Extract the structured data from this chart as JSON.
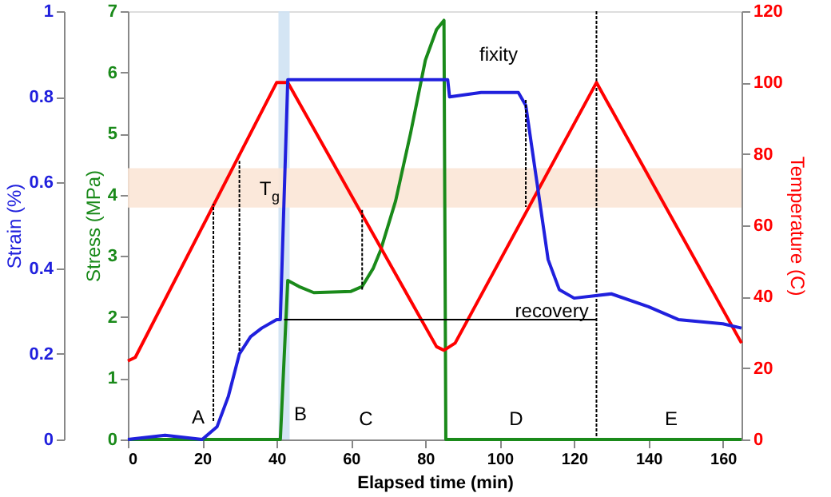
{
  "chart_data": {
    "type": "line",
    "xlabel": "Elapsed time (min)",
    "ylabel": "Stress (MPa)",
    "y2label": "Temperature (C)",
    "y3label": "Strain (%)",
    "xlim": [
      0,
      165
    ],
    "xticks": [
      0,
      20,
      40,
      60,
      80,
      100,
      120,
      140,
      160
    ],
    "ylim": [
      0,
      7
    ],
    "yticks": [
      0,
      1,
      2,
      3,
      4,
      5,
      6,
      7
    ],
    "y2lim": [
      0,
      120
    ],
    "y2ticks": [
      0,
      20,
      40,
      60,
      80,
      100,
      120
    ],
    "y3lim": [
      0,
      1
    ],
    "y3ticks": [
      0,
      0.2,
      0.4,
      0.6,
      0.8,
      1
    ],
    "marker": "none",
    "series": [
      {
        "color": "#1a8a1a",
        "axis": "y",
        "x": [
          0,
          41,
          43,
          46,
          50,
          60,
          63,
          66,
          68,
          72,
          76,
          80,
          83,
          85,
          85.5,
          165
        ],
        "values": [
          0,
          0,
          2.6,
          2.5,
          2.4,
          2.42,
          2.5,
          2.8,
          3.1,
          3.9,
          5.0,
          6.2,
          6.7,
          6.85,
          0,
          0
        ]
      },
      {
        "color": "#ff0000",
        "axis": "y2",
        "x": [
          0,
          2,
          40,
          43,
          83,
          85,
          88,
          126,
          165
        ],
        "values": [
          22,
          23,
          100,
          100,
          26,
          25,
          27,
          100,
          27
        ]
      },
      {
        "color": "#2020dd",
        "axis": "y3",
        "x": [
          0,
          10,
          20,
          24,
          27,
          30,
          33,
          36,
          40,
          41,
          43,
          86,
          86.5,
          95,
          105,
          107,
          110,
          113,
          116,
          120,
          130,
          140,
          148,
          160,
          165
        ],
        "values": [
          0,
          0.01,
          0,
          0.03,
          0.1,
          0.2,
          0.24,
          0.26,
          0.28,
          0.28,
          0.84,
          0.84,
          0.8,
          0.81,
          0.81,
          0.78,
          0.6,
          0.42,
          0.35,
          0.33,
          0.34,
          0.31,
          0.28,
          0.27,
          0.26
        ]
      },
      {
        "color": "#000000",
        "axis": "y3",
        "x": [
          42,
          126
        ],
        "values": [
          0.28,
          0.28
        ]
      },
      {
        "color": "#000000",
        "axis": "y",
        "line_style": "dotted",
        "x": [
          23,
          23
        ],
        "values": [
          0.3,
          3.85
        ]
      },
      {
        "color": "#000000",
        "axis": "y",
        "line_style": "dotted",
        "x": [
          30,
          30
        ],
        "values": [
          1.45,
          4.55
        ]
      },
      {
        "color": "#000000",
        "axis": "y",
        "line_style": "dotted",
        "x": [
          63,
          63
        ],
        "values": [
          2.45,
          3.75
        ]
      },
      {
        "color": "#000000",
        "axis": "y",
        "line_style": "dotted",
        "x": [
          107,
          107
        ],
        "values": [
          5.55,
          3.8
        ]
      }
    ],
    "ref_lines": [
      {
        "axis": "x",
        "value": 126,
        "color": "#000000",
        "line_style": "dotted"
      }
    ],
    "bands": [
      {
        "axis": "x",
        "from": 40.5,
        "to": 43.5,
        "color": "#cfe2f3"
      },
      {
        "axis": "y2",
        "from": 65,
        "to": 76,
        "color": "#fbe5d6"
      }
    ],
    "annotations": [
      "A",
      "B",
      "C",
      "D",
      "E",
      "fixity",
      "T$_{g}$",
      {
        "text": "recovery",
        "x": 114,
        "y": 2.1
      }
    ]
  }
}
